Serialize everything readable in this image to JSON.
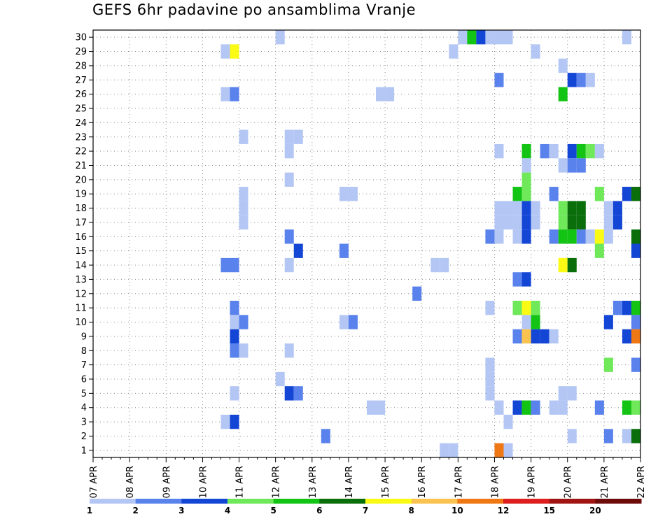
{
  "chart_data": {
    "type": "heatmap",
    "title": "GEFS 6hr padavine po ansamblima Vranje",
    "xlabel": "",
    "ylabel": "",
    "x_tick_labels": [
      "07 APR",
      "08 APR",
      "09 APR",
      "10 APR",
      "11 APR",
      "12 APR",
      "13 APR",
      "14 APR",
      "15 APR",
      "16 APR",
      "17 APR",
      "18 APR",
      "19 APR",
      "20 APR",
      "21 APR",
      "22 APR"
    ],
    "y_tick_labels": [
      "1",
      "2",
      "3",
      "4",
      "5",
      "6",
      "7",
      "8",
      "9",
      "10",
      "11",
      "12",
      "13",
      "14",
      "15",
      "16",
      "17",
      "18",
      "19",
      "20",
      "21",
      "22",
      "23",
      "24",
      "25",
      "26",
      "27",
      "28",
      "29",
      "30"
    ],
    "y_range": [
      0.5,
      30.5
    ],
    "x_range_days": [
      0,
      15
    ],
    "steps_per_day": 4,
    "grid": true,
    "legend": {
      "placement": "bottom",
      "labels": [
        "1",
        "2",
        "3",
        "4",
        "5",
        "6",
        "7",
        "8",
        "10",
        "12",
        "15",
        "20"
      ],
      "colors": [
        "#b4c7f4",
        "#5a82ec",
        "#1446d6",
        "#6fe85a",
        "#14c414",
        "#0a6e0a",
        "#fafa14",
        "#fac350",
        "#f07814",
        "#dc1e1e",
        "#a01414",
        "#6e0a0a"
      ]
    },
    "cells": [
      {
        "step": 20,
        "member": 30,
        "cls": 0
      },
      {
        "step": 40,
        "member": 30,
        "cls": 0
      },
      {
        "step": 41,
        "member": 30,
        "cls": 4
      },
      {
        "step": 42,
        "member": 30,
        "cls": 2
      },
      {
        "step": 43,
        "member": 30,
        "cls": 0
      },
      {
        "step": 44,
        "member": 30,
        "cls": 0
      },
      {
        "step": 45,
        "member": 30,
        "cls": 0
      },
      {
        "step": 58,
        "member": 30,
        "cls": 0
      },
      {
        "step": 14,
        "member": 29,
        "cls": 0
      },
      {
        "step": 15,
        "member": 29,
        "cls": 6
      },
      {
        "step": 39,
        "member": 29,
        "cls": 0
      },
      {
        "step": 48,
        "member": 29,
        "cls": 0
      },
      {
        "step": 51,
        "member": 28,
        "cls": 0
      },
      {
        "step": 44,
        "member": 27,
        "cls": 1
      },
      {
        "step": 52,
        "member": 27,
        "cls": 2
      },
      {
        "step": 53,
        "member": 27,
        "cls": 1
      },
      {
        "step": 54,
        "member": 27,
        "cls": 0
      },
      {
        "step": 14,
        "member": 26,
        "cls": 0
      },
      {
        "step": 15,
        "member": 26,
        "cls": 1
      },
      {
        "step": 31,
        "member": 26,
        "cls": 0
      },
      {
        "step": 32,
        "member": 26,
        "cls": 0
      },
      {
        "step": 51,
        "member": 26,
        "cls": 4
      },
      {
        "step": 16,
        "member": 23,
        "cls": 0
      },
      {
        "step": 21,
        "member": 23,
        "cls": 0
      },
      {
        "step": 22,
        "member": 23,
        "cls": 0
      },
      {
        "step": 21,
        "member": 22,
        "cls": 0
      },
      {
        "step": 44,
        "member": 22,
        "cls": 0
      },
      {
        "step": 47,
        "member": 22,
        "cls": 4
      },
      {
        "step": 49,
        "member": 22,
        "cls": 1
      },
      {
        "step": 50,
        "member": 22,
        "cls": 0
      },
      {
        "step": 52,
        "member": 22,
        "cls": 2
      },
      {
        "step": 53,
        "member": 22,
        "cls": 4
      },
      {
        "step": 54,
        "member": 22,
        "cls": 3
      },
      {
        "step": 55,
        "member": 22,
        "cls": 0
      },
      {
        "step": 47,
        "member": 21,
        "cls": 0
      },
      {
        "step": 51,
        "member": 21,
        "cls": 0
      },
      {
        "step": 52,
        "member": 21,
        "cls": 1
      },
      {
        "step": 53,
        "member": 21,
        "cls": 1
      },
      {
        "step": 21,
        "member": 20,
        "cls": 0
      },
      {
        "step": 47,
        "member": 20,
        "cls": 3
      },
      {
        "step": 16,
        "member": 19,
        "cls": 0
      },
      {
        "step": 27,
        "member": 19,
        "cls": 0
      },
      {
        "step": 28,
        "member": 19,
        "cls": 0
      },
      {
        "step": 46,
        "member": 19,
        "cls": 4
      },
      {
        "step": 47,
        "member": 19,
        "cls": 3
      },
      {
        "step": 50,
        "member": 19,
        "cls": 1
      },
      {
        "step": 55,
        "member": 19,
        "cls": 3
      },
      {
        "step": 58,
        "member": 19,
        "cls": 2
      },
      {
        "step": 59,
        "member": 19,
        "cls": 5
      },
      {
        "step": 16,
        "member": 18,
        "cls": 0
      },
      {
        "step": 44,
        "member": 18,
        "cls": 0
      },
      {
        "step": 45,
        "member": 18,
        "cls": 0
      },
      {
        "step": 46,
        "member": 18,
        "cls": 0
      },
      {
        "step": 47,
        "member": 18,
        "cls": 2
      },
      {
        "step": 48,
        "member": 18,
        "cls": 0
      },
      {
        "step": 51,
        "member": 18,
        "cls": 3
      },
      {
        "step": 52,
        "member": 18,
        "cls": 5
      },
      {
        "step": 53,
        "member": 18,
        "cls": 5
      },
      {
        "step": 56,
        "member": 18,
        "cls": 0
      },
      {
        "step": 57,
        "member": 18,
        "cls": 2
      },
      {
        "step": 16,
        "member": 17,
        "cls": 0
      },
      {
        "step": 44,
        "member": 17,
        "cls": 0
      },
      {
        "step": 45,
        "member": 17,
        "cls": 0
      },
      {
        "step": 46,
        "member": 17,
        "cls": 0
      },
      {
        "step": 47,
        "member": 17,
        "cls": 2
      },
      {
        "step": 48,
        "member": 17,
        "cls": 0
      },
      {
        "step": 51,
        "member": 17,
        "cls": 3
      },
      {
        "step": 52,
        "member": 17,
        "cls": 5
      },
      {
        "step": 53,
        "member": 17,
        "cls": 5
      },
      {
        "step": 56,
        "member": 17,
        "cls": 0
      },
      {
        "step": 57,
        "member": 17,
        "cls": 2
      },
      {
        "step": 21,
        "member": 16,
        "cls": 1
      },
      {
        "step": 43,
        "member": 16,
        "cls": 1
      },
      {
        "step": 44,
        "member": 16,
        "cls": 0
      },
      {
        "step": 46,
        "member": 16,
        "cls": 0
      },
      {
        "step": 47,
        "member": 16,
        "cls": 2
      },
      {
        "step": 50,
        "member": 16,
        "cls": 1
      },
      {
        "step": 51,
        "member": 16,
        "cls": 4
      },
      {
        "step": 52,
        "member": 16,
        "cls": 4
      },
      {
        "step": 53,
        "member": 16,
        "cls": 1
      },
      {
        "step": 54,
        "member": 16,
        "cls": 0
      },
      {
        "step": 55,
        "member": 16,
        "cls": 6
      },
      {
        "step": 56,
        "member": 16,
        "cls": 0
      },
      {
        "step": 59,
        "member": 16,
        "cls": 5
      },
      {
        "step": 60,
        "member": 16,
        "cls": 2
      },
      {
        "step": 22,
        "member": 15,
        "cls": 2
      },
      {
        "step": 27,
        "member": 15,
        "cls": 1
      },
      {
        "step": 55,
        "member": 15,
        "cls": 3
      },
      {
        "step": 59,
        "member": 15,
        "cls": 2
      },
      {
        "step": 14,
        "member": 14,
        "cls": 1
      },
      {
        "step": 15,
        "member": 14,
        "cls": 1
      },
      {
        "step": 21,
        "member": 14,
        "cls": 0
      },
      {
        "step": 37,
        "member": 14,
        "cls": 0
      },
      {
        "step": 38,
        "member": 14,
        "cls": 0
      },
      {
        "step": 51,
        "member": 14,
        "cls": 6
      },
      {
        "step": 52,
        "member": 14,
        "cls": 5
      },
      {
        "step": 46,
        "member": 13,
        "cls": 1
      },
      {
        "step": 47,
        "member": 13,
        "cls": 2
      },
      {
        "step": 35,
        "member": 12,
        "cls": 1
      },
      {
        "step": 15,
        "member": 11,
        "cls": 1
      },
      {
        "step": 43,
        "member": 11,
        "cls": 0
      },
      {
        "step": 46,
        "member": 11,
        "cls": 3
      },
      {
        "step": 47,
        "member": 11,
        "cls": 6
      },
      {
        "step": 48,
        "member": 11,
        "cls": 3
      },
      {
        "step": 57,
        "member": 11,
        "cls": 1
      },
      {
        "step": 58,
        "member": 11,
        "cls": 2
      },
      {
        "step": 59,
        "member": 11,
        "cls": 4
      },
      {
        "step": 15,
        "member": 10,
        "cls": 0
      },
      {
        "step": 16,
        "member": 10,
        "cls": 1
      },
      {
        "step": 27,
        "member": 10,
        "cls": 0
      },
      {
        "step": 28,
        "member": 10,
        "cls": 1
      },
      {
        "step": 47,
        "member": 10,
        "cls": 0
      },
      {
        "step": 48,
        "member": 10,
        "cls": 4
      },
      {
        "step": 56,
        "member": 10,
        "cls": 2
      },
      {
        "step": 59,
        "member": 10,
        "cls": 1
      },
      {
        "step": 15,
        "member": 9,
        "cls": 2
      },
      {
        "step": 46,
        "member": 9,
        "cls": 1
      },
      {
        "step": 47,
        "member": 9,
        "cls": 7
      },
      {
        "step": 48,
        "member": 9,
        "cls": 2
      },
      {
        "step": 49,
        "member": 9,
        "cls": 2
      },
      {
        "step": 50,
        "member": 9,
        "cls": 0
      },
      {
        "step": 58,
        "member": 9,
        "cls": 2
      },
      {
        "step": 59,
        "member": 9,
        "cls": 8
      },
      {
        "step": 60,
        "member": 9,
        "cls": 9
      },
      {
        "step": 15,
        "member": 8,
        "cls": 1
      },
      {
        "step": 16,
        "member": 8,
        "cls": 0
      },
      {
        "step": 21,
        "member": 8,
        "cls": 0
      },
      {
        "step": 43,
        "member": 7,
        "cls": 0
      },
      {
        "step": 56,
        "member": 7,
        "cls": 3
      },
      {
        "step": 59,
        "member": 7,
        "cls": 1
      },
      {
        "step": 60,
        "member": 7,
        "cls": 0
      },
      {
        "step": 20,
        "member": 6,
        "cls": 0
      },
      {
        "step": 43,
        "member": 6,
        "cls": 0
      },
      {
        "step": 15,
        "member": 5,
        "cls": 0
      },
      {
        "step": 21,
        "member": 5,
        "cls": 2
      },
      {
        "step": 22,
        "member": 5,
        "cls": 1
      },
      {
        "step": 43,
        "member": 5,
        "cls": 0
      },
      {
        "step": 51,
        "member": 5,
        "cls": 0
      },
      {
        "step": 52,
        "member": 5,
        "cls": 0
      },
      {
        "step": 30,
        "member": 4,
        "cls": 0
      },
      {
        "step": 31,
        "member": 4,
        "cls": 0
      },
      {
        "step": 44,
        "member": 4,
        "cls": 0
      },
      {
        "step": 46,
        "member": 4,
        "cls": 2
      },
      {
        "step": 47,
        "member": 4,
        "cls": 4
      },
      {
        "step": 48,
        "member": 4,
        "cls": 1
      },
      {
        "step": 50,
        "member": 4,
        "cls": 0
      },
      {
        "step": 51,
        "member": 4,
        "cls": 0
      },
      {
        "step": 55,
        "member": 4,
        "cls": 1
      },
      {
        "step": 58,
        "member": 4,
        "cls": 4
      },
      {
        "step": 59,
        "member": 4,
        "cls": 3
      },
      {
        "step": 14,
        "member": 3,
        "cls": 0
      },
      {
        "step": 15,
        "member": 3,
        "cls": 2
      },
      {
        "step": 45,
        "member": 3,
        "cls": 0
      },
      {
        "step": 25,
        "member": 2,
        "cls": 1
      },
      {
        "step": 52,
        "member": 2,
        "cls": 0
      },
      {
        "step": 56,
        "member": 2,
        "cls": 1
      },
      {
        "step": 58,
        "member": 2,
        "cls": 0
      },
      {
        "step": 59,
        "member": 2,
        "cls": 5
      },
      {
        "step": 60,
        "member": 2,
        "cls": 1
      },
      {
        "step": 38,
        "member": 1,
        "cls": 0
      },
      {
        "step": 39,
        "member": 1,
        "cls": 0
      },
      {
        "step": 44,
        "member": 1,
        "cls": 8
      },
      {
        "step": 45,
        "member": 1,
        "cls": 0
      },
      {
        "step": 15,
        "member": 0,
        "cls": 0
      },
      {
        "step": 21,
        "member": 0,
        "cls": 0
      },
      {
        "step": 32,
        "member": 0,
        "cls": 0
      }
    ]
  }
}
